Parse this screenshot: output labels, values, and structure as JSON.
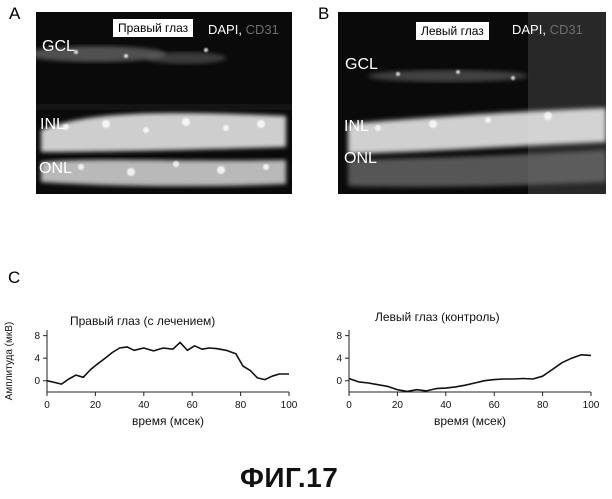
{
  "panels": {
    "A": {
      "letter": "A",
      "eye_label": "Правый глаз",
      "stain_primary": "DAPI,",
      "stain_secondary": "CD31",
      "layers": [
        "GCL",
        "INL",
        "ONL"
      ]
    },
    "B": {
      "letter": "B",
      "eye_label": "Левый глаз",
      "stain_primary": "DAPI,",
      "stain_secondary": "CD31",
      "layers": [
        "GCL",
        "INL",
        "ONL"
      ]
    },
    "C": {
      "letter": "C"
    }
  },
  "chart_data": [
    {
      "type": "line",
      "title": "Правый глаз (с лечением)",
      "xlabel": "время (мсек)",
      "ylabel": "Амплитуда (мкВ)",
      "xlim": [
        0,
        100
      ],
      "ylim": [
        -2,
        9
      ],
      "xticks": [
        0,
        20,
        40,
        60,
        80,
        100
      ],
      "yticks": [
        0,
        4,
        8
      ],
      "ytick_labels": [
        "8",
        "4",
        "0"
      ],
      "x": [
        0,
        3,
        6,
        9,
        12,
        15,
        18,
        21,
        24,
        27,
        30,
        33,
        36,
        40,
        44,
        48,
        52,
        55,
        58,
        61,
        64,
        67,
        70,
        74,
        78,
        81,
        84,
        87,
        90,
        93,
        96,
        100
      ],
      "y": [
        0,
        -0.3,
        -0.6,
        0.3,
        1.0,
        0.6,
        2.0,
        3.0,
        4.0,
        5.0,
        5.8,
        6.0,
        5.4,
        5.8,
        5.3,
        5.8,
        5.6,
        6.8,
        5.4,
        6.2,
        5.6,
        5.8,
        5.7,
        5.4,
        4.8,
        2.6,
        1.8,
        0.5,
        0.2,
        0.8,
        1.2,
        1.2
      ]
    },
    {
      "type": "line",
      "title": "Левый глаз (контроль)",
      "xlabel": "время (мсек)",
      "ylabel": "",
      "xlim": [
        0,
        100
      ],
      "ylim": [
        -2,
        9
      ],
      "xticks": [
        0,
        20,
        40,
        60,
        80,
        100
      ],
      "yticks": [
        0,
        4,
        8
      ],
      "ytick_labels": [
        "8",
        "4",
        "0"
      ],
      "x": [
        0,
        4,
        8,
        12,
        16,
        20,
        24,
        28,
        32,
        36,
        40,
        44,
        48,
        52,
        56,
        60,
        64,
        68,
        72,
        76,
        80,
        84,
        88,
        92,
        96,
        100
      ],
      "y": [
        0.4,
        -0.2,
        -0.4,
        -0.7,
        -1.0,
        -1.6,
        -1.9,
        -1.6,
        -1.8,
        -1.4,
        -1.3,
        -1.1,
        -0.8,
        -0.4,
        0.0,
        0.2,
        0.3,
        0.3,
        0.4,
        0.3,
        0.8,
        2.0,
        3.2,
        4.0,
        4.6,
        4.5
      ]
    }
  ],
  "figure_label": "ФИГ.17"
}
